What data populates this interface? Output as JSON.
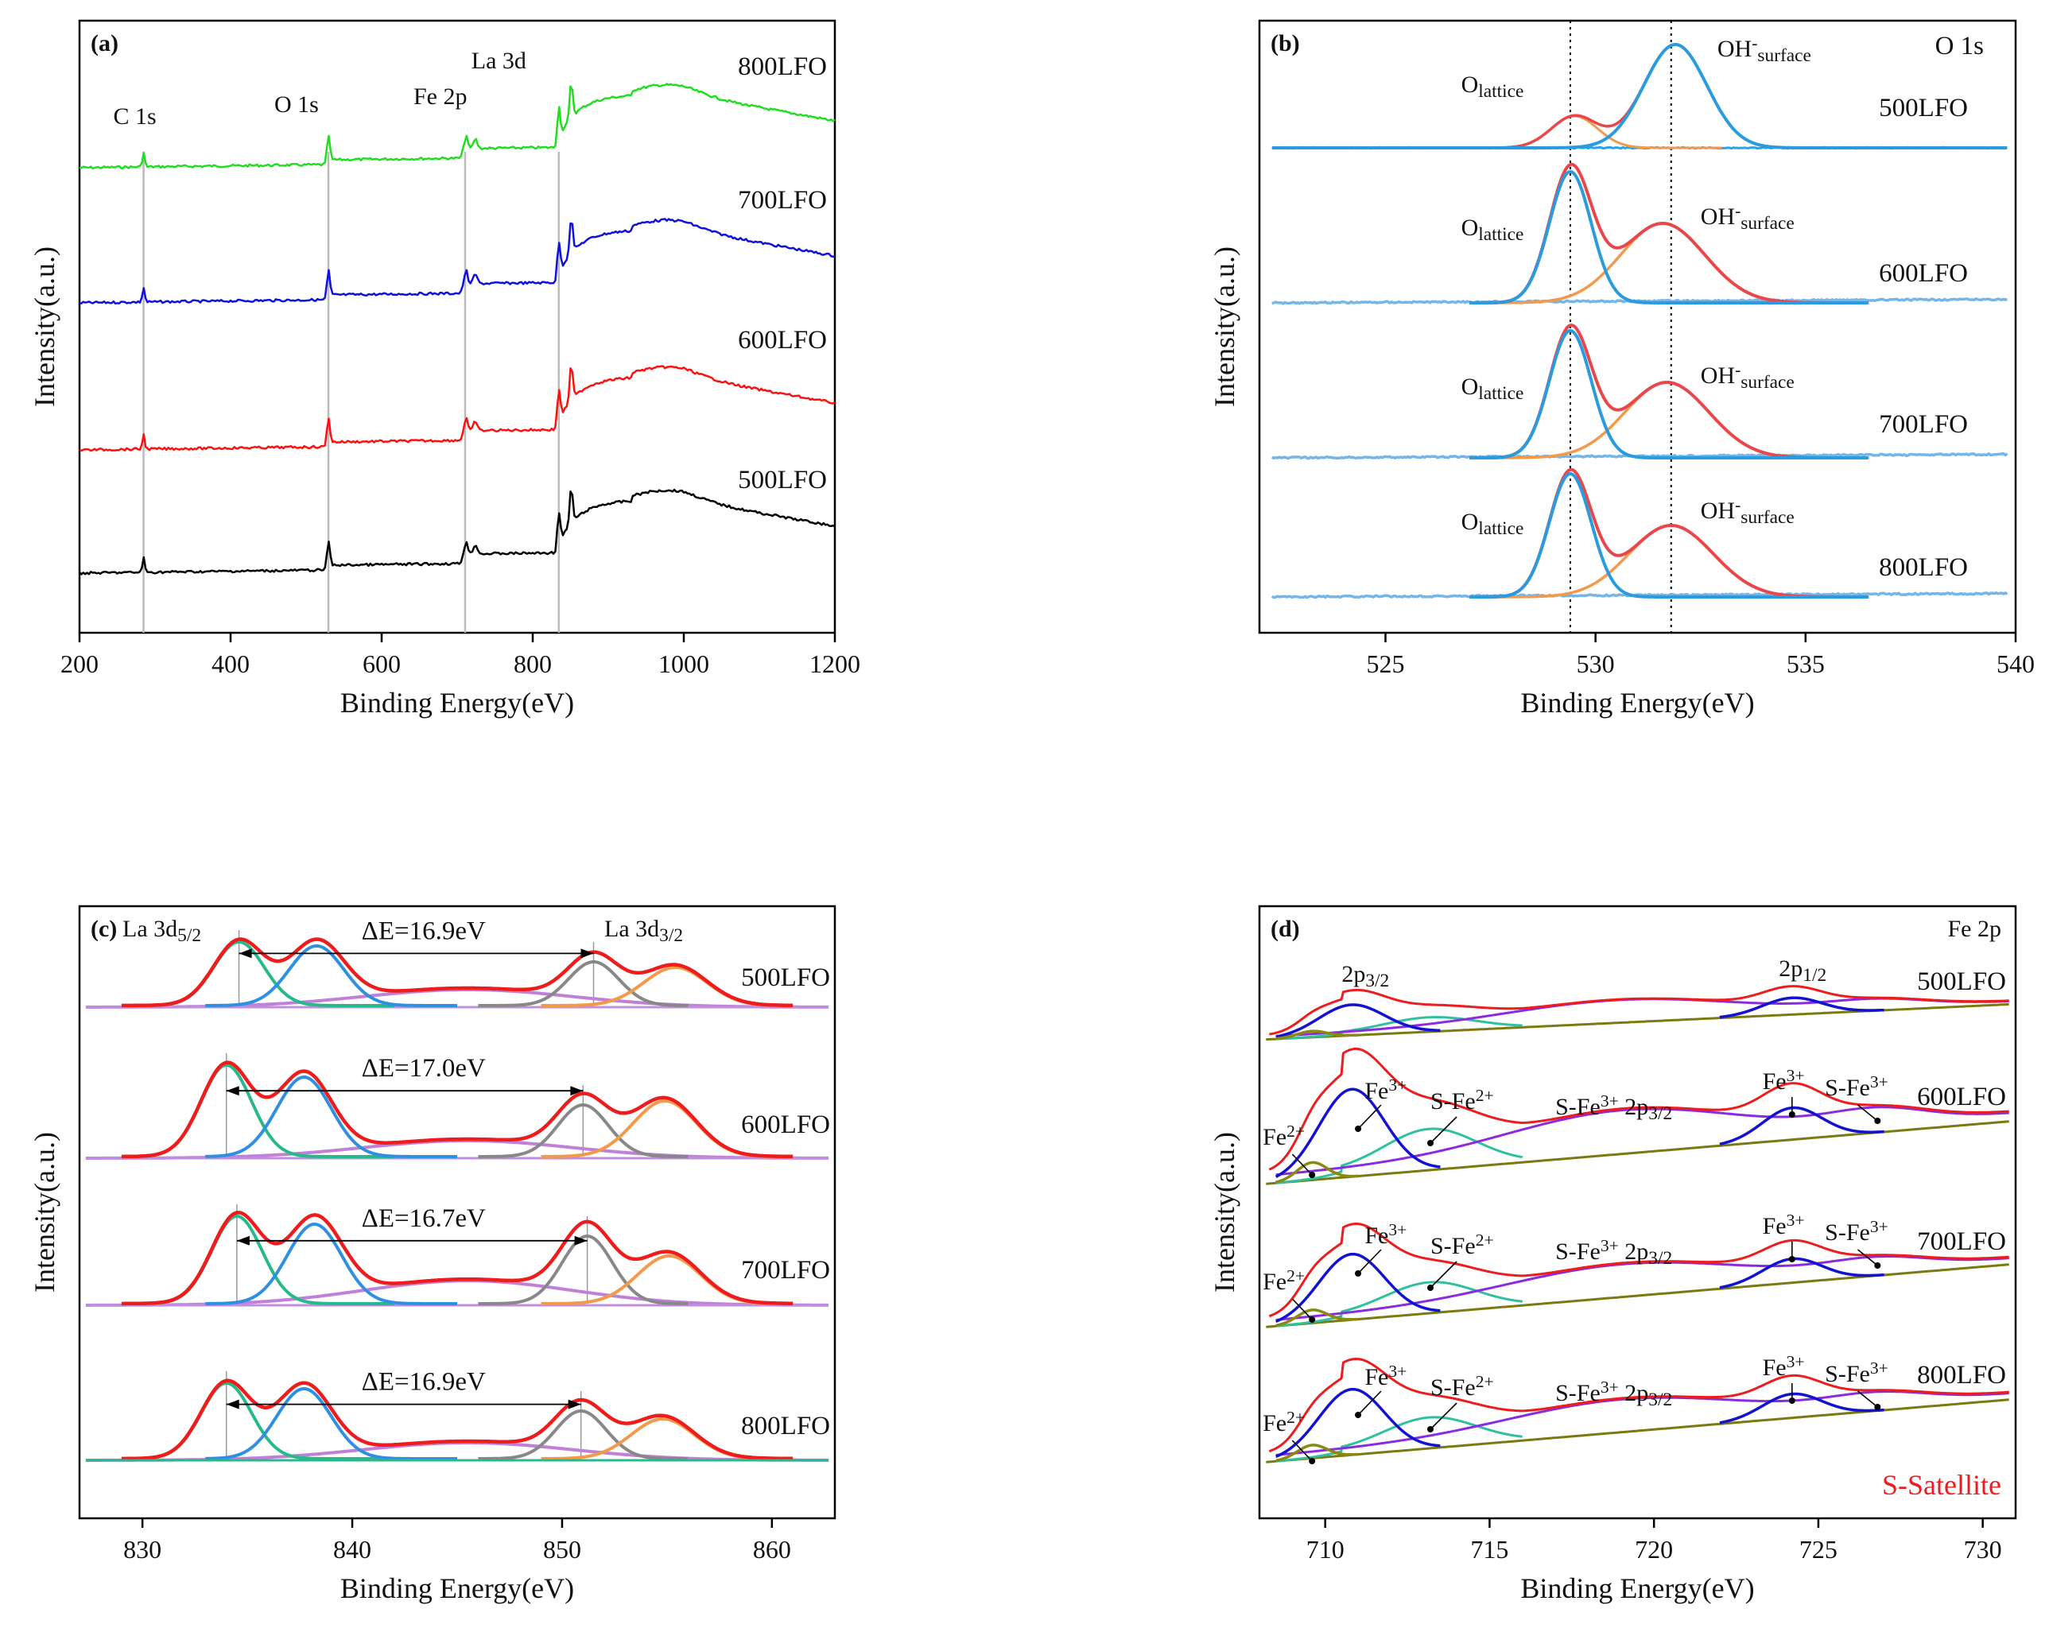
{
  "chart_data": [
    {
      "id": "a",
      "type": "line",
      "panel_label": "(a)",
      "title": "",
      "xlabel": "Binding Energy(eV)",
      "ylabel": "Intensity(a.u.)",
      "xlim": [
        200,
        1200
      ],
      "xticks": [
        200,
        400,
        600,
        800,
        1000,
        1200
      ],
      "peak_labels": [
        {
          "text": "C 1s",
          "x": 284.8
        },
        {
          "text": "O 1s",
          "x": 529.5
        },
        {
          "text": "Fe 2p",
          "x": 710.5
        },
        {
          "text": "La 3d",
          "x": 834.5
        }
      ],
      "reference_lines": [
        284.8,
        529.5,
        710.5,
        834.5
      ],
      "series": [
        {
          "name": "800LFO",
          "color": "#22dd22"
        },
        {
          "name": "700LFO",
          "color": "#1010e0"
        },
        {
          "name": "600LFO",
          "color": "#ff1010"
        },
        {
          "name": "500LFO",
          "color": "#000000"
        }
      ]
    },
    {
      "id": "b",
      "type": "line",
      "panel_label": "(b)",
      "title": "O 1s",
      "xlabel": "Binding Energy(eV)",
      "ylabel": "Intensity(a.u.)",
      "xlim": [
        522,
        540
      ],
      "xticks": [
        525,
        530,
        535,
        540
      ],
      "reference_lines": [
        529.4,
        531.8
      ],
      "series": [
        {
          "name": "500LFO",
          "o_lattice_eV": 529.5,
          "oh_surface_eV": 531.9,
          "labels": {
            "o_lattice": "O",
            "o_lattice_sub": "lattice",
            "oh": "OH",
            "oh_sup": "-",
            "oh_sub": "surface"
          }
        },
        {
          "name": "600LFO",
          "o_lattice_eV": 529.4,
          "oh_surface_eV": 531.6,
          "labels": {
            "o_lattice": "O",
            "o_lattice_sub": "lattice",
            "oh": "OH",
            "oh_sup": "-",
            "oh_sub": "surface"
          }
        },
        {
          "name": "700LFO",
          "o_lattice_eV": 529.4,
          "oh_surface_eV": 531.7,
          "labels": {
            "o_lattice": "O",
            "o_lattice_sub": "lattice",
            "oh": "OH",
            "oh_sup": "-",
            "oh_sub": "surface"
          }
        },
        {
          "name": "800LFO",
          "o_lattice_eV": 529.4,
          "oh_surface_eV": 531.8,
          "labels": {
            "o_lattice": "O",
            "o_lattice_sub": "lattice",
            "oh": "OH",
            "oh_sup": "-",
            "oh_sub": "surface"
          }
        }
      ]
    },
    {
      "id": "c",
      "type": "line",
      "panel_label": "(c)",
      "title": "",
      "xlabel": "Binding Energy(eV)",
      "ylabel": "Intensity(a.u.)",
      "xlim": [
        827,
        863
      ],
      "xticks": [
        830,
        840,
        850,
        860
      ],
      "peak_labels": [
        {
          "text": "La 3d",
          "sub": "5/2"
        },
        {
          "text": "La 3d",
          "sub": "3/2"
        }
      ],
      "series": [
        {
          "name": "500LFO",
          "delta_E": "ΔE=16.9eV",
          "peak1_eV": 834.6,
          "peak2_eV": 851.5
        },
        {
          "name": "600LFO",
          "delta_E": "ΔE=17.0eV",
          "peak1_eV": 834.0,
          "peak2_eV": 851.0
        },
        {
          "name": "700LFO",
          "delta_E": "ΔE=16.7eV",
          "peak1_eV": 834.5,
          "peak2_eV": 851.2
        },
        {
          "name": "800LFO",
          "delta_E": "ΔE=16.9eV",
          "peak1_eV": 834.0,
          "peak2_eV": 850.9
        }
      ]
    },
    {
      "id": "d",
      "type": "line",
      "panel_label": "(d)",
      "title": "Fe 2p",
      "xlabel": "Binding Energy(eV)",
      "ylabel": "Intensity(a.u.)",
      "xlim": [
        708,
        731
      ],
      "xticks": [
        710,
        715,
        720,
        725,
        730
      ],
      "legend_note": "S-Satellite",
      "labels_500": {
        "p32": "2p",
        "p32_sub": "3/2",
        "p12": "2p",
        "p12_sub": "1/2"
      },
      "labels_other": {
        "fe2": "Fe",
        "fe2_sup": "2+",
        "fe3": "Fe",
        "fe3_sup": "3+",
        "sfe2": "S-Fe",
        "sfe2_sup": "2+",
        "sfe3": "S-Fe",
        "sfe3_sup": "3+",
        "sfe3_2p": "S-Fe",
        "sfe3_2p_sup": "3+",
        "sfe3_2p_tail": " 2p",
        "sfe3_2p_sub": "3/2"
      },
      "series": [
        {
          "name": "500LFO"
        },
        {
          "name": "600LFO"
        },
        {
          "name": "700LFO"
        },
        {
          "name": "800LFO"
        }
      ]
    }
  ]
}
